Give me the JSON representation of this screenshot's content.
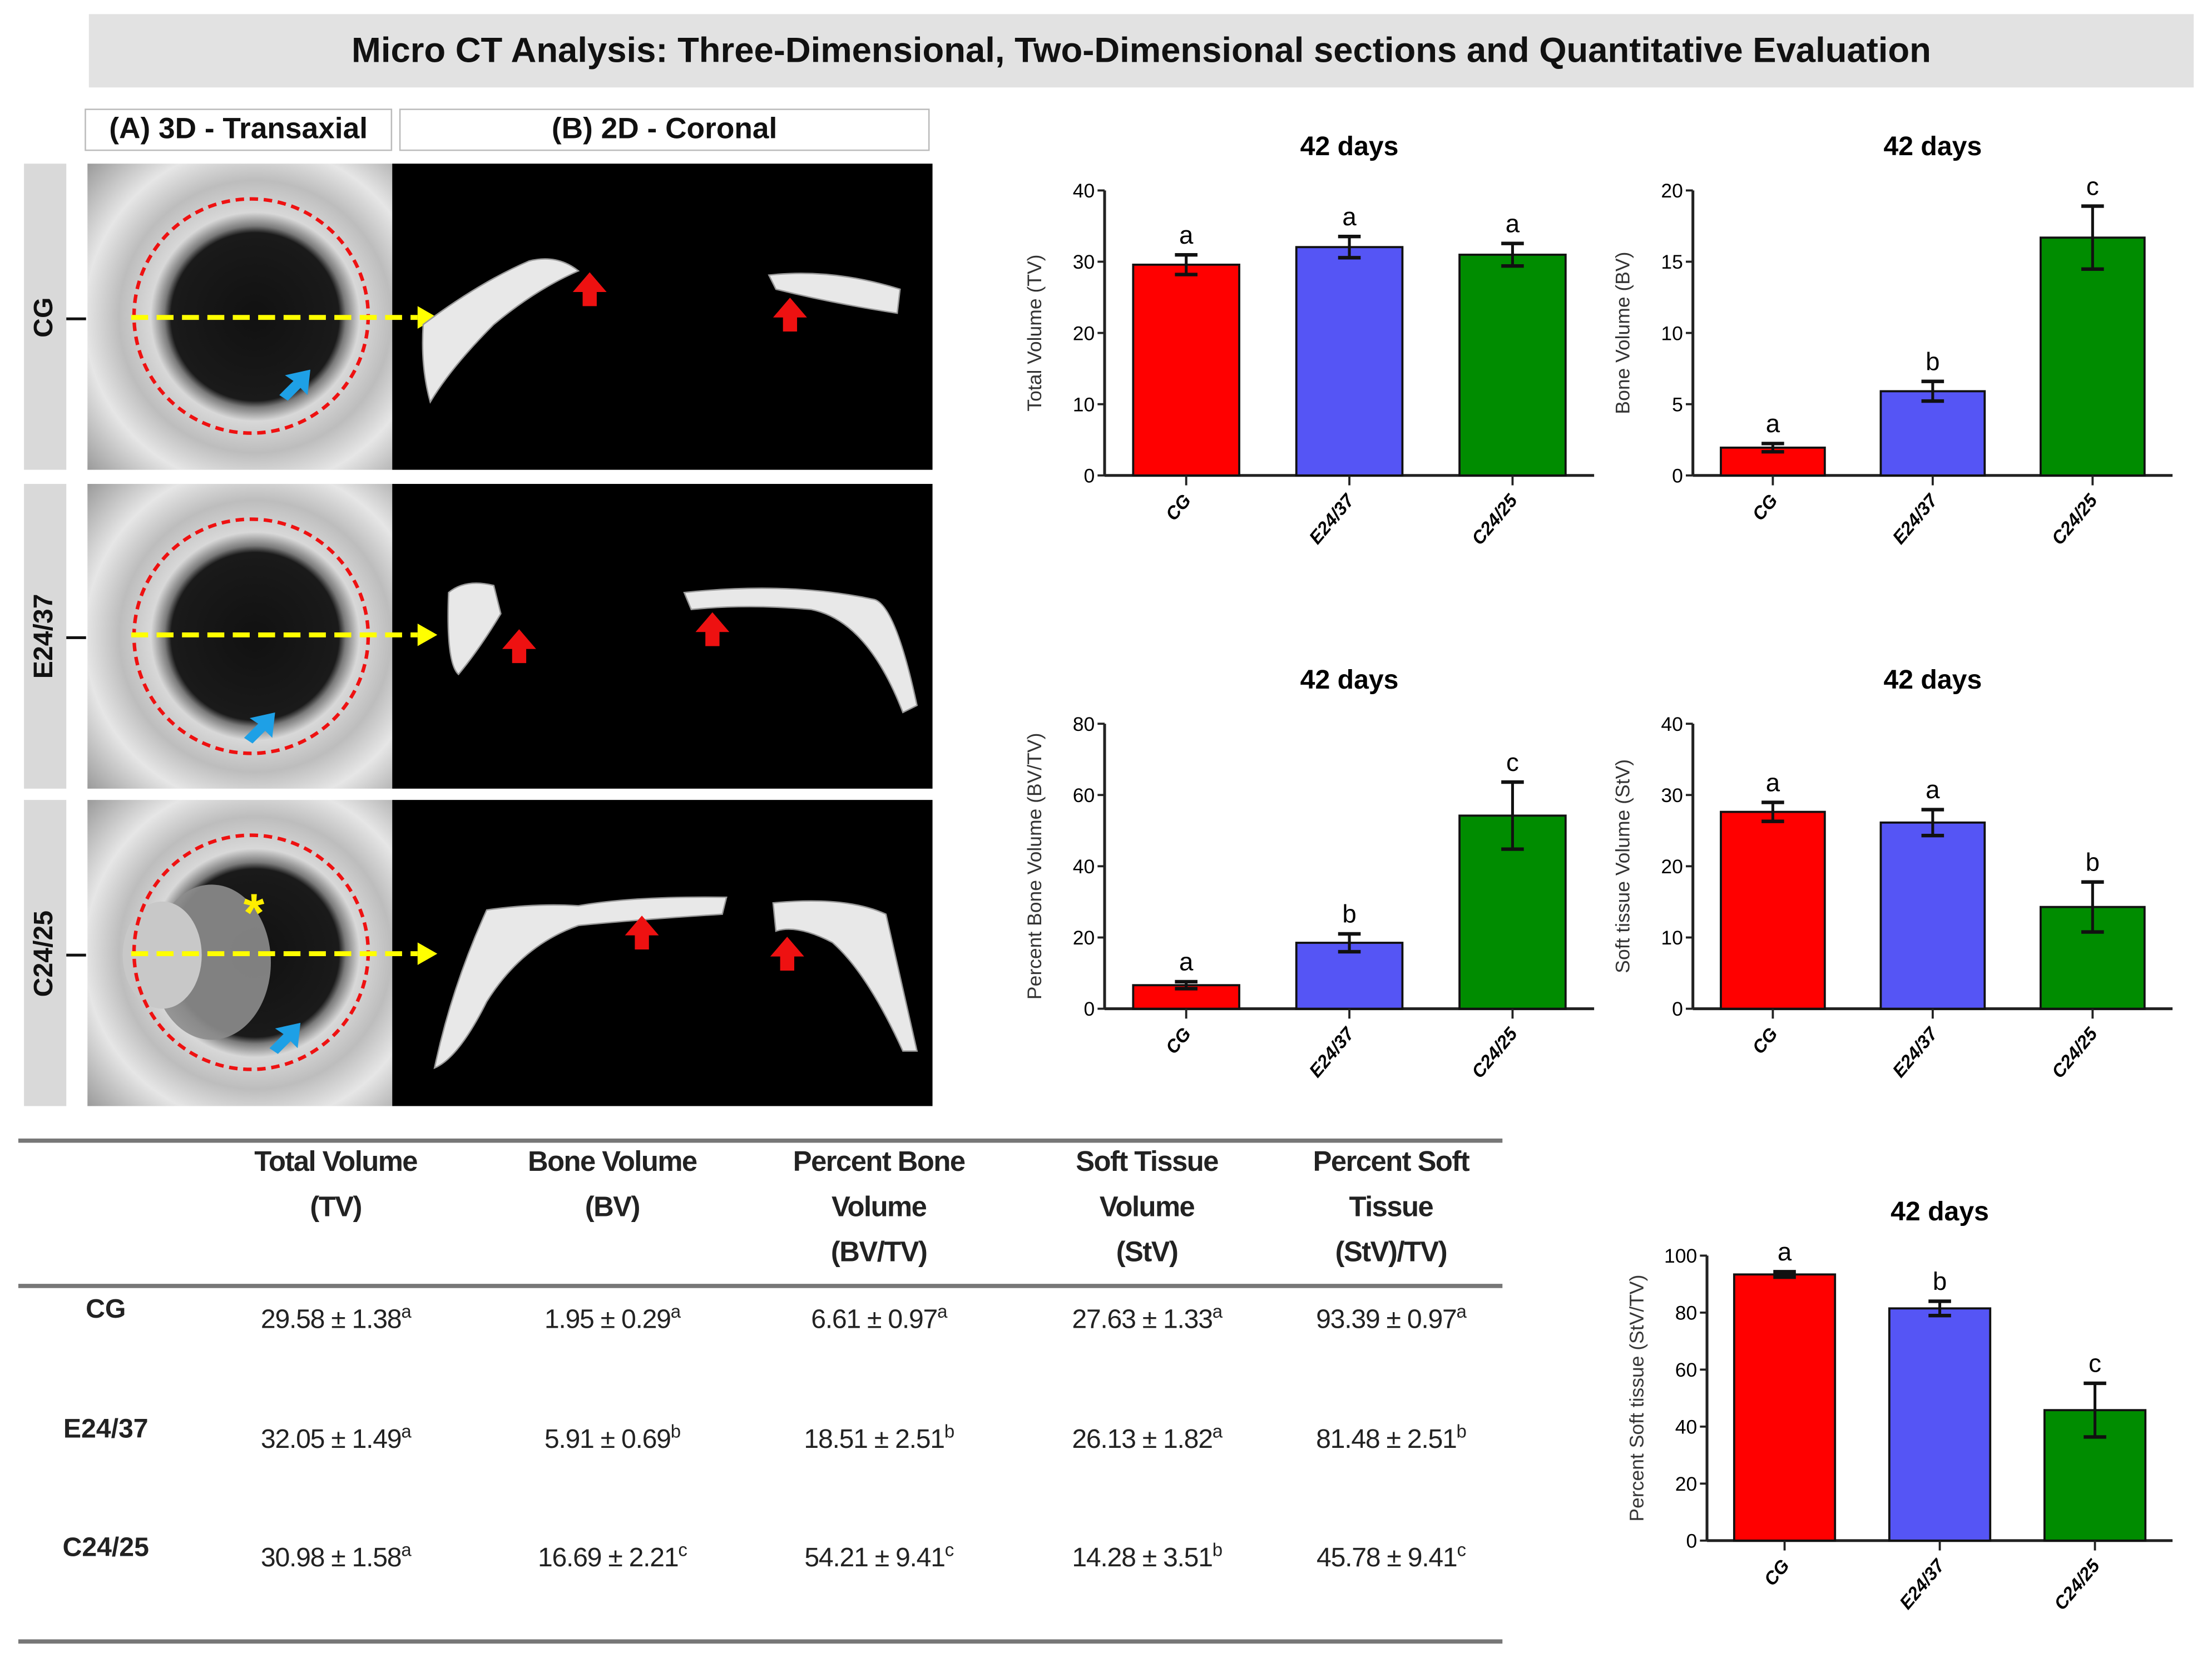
{
  "title": "Micro CT Analysis: Three-Dimensional, Two-Dimensional sections and Quantitative Evaluation",
  "panels": {
    "a": "(A) 3D - Transaxial",
    "b": "(B) 2D - Coronal"
  },
  "groups": [
    "CG",
    "E24/37",
    "C24/25"
  ],
  "colors": {
    "CG": "#ff0000",
    "E24/37": "#5555f5",
    "C24/25": "#008c00"
  },
  "chart_data": [
    {
      "type": "bar",
      "title": "42 days",
      "ylabel": "Total Volume (TV)",
      "categories": [
        "CG",
        "E24/37",
        "C24/25"
      ],
      "values": [
        29.58,
        32.05,
        30.98
      ],
      "errors": [
        1.38,
        1.49,
        1.58
      ],
      "letters": [
        "a",
        "a",
        "a"
      ],
      "ylim": [
        0,
        40
      ],
      "yticks": [
        0,
        10,
        20,
        30,
        40
      ]
    },
    {
      "type": "bar",
      "title": "42 days",
      "ylabel": "Bone Volume (BV)",
      "categories": [
        "CG",
        "E24/37",
        "C24/25"
      ],
      "values": [
        1.95,
        5.91,
        16.69
      ],
      "errors": [
        0.29,
        0.69,
        2.21
      ],
      "letters": [
        "a",
        "b",
        "c"
      ],
      "ylim": [
        0,
        20
      ],
      "yticks": [
        0,
        5,
        10,
        15,
        20
      ]
    },
    {
      "type": "bar",
      "title": "42 days",
      "ylabel": "Percent Bone Volume (BV/TV)",
      "categories": [
        "CG",
        "E24/37",
        "C24/25"
      ],
      "values": [
        6.61,
        18.51,
        54.21
      ],
      "errors": [
        0.97,
        2.51,
        9.41
      ],
      "letters": [
        "a",
        "b",
        "c"
      ],
      "ylim": [
        0,
        80
      ],
      "yticks": [
        0,
        20,
        40,
        60,
        80
      ]
    },
    {
      "type": "bar",
      "title": "42 days",
      "ylabel": "Soft tissue Volume (StV)",
      "categories": [
        "CG",
        "E24/37",
        "C24/25"
      ],
      "values": [
        27.63,
        26.13,
        14.28
      ],
      "errors": [
        1.33,
        1.82,
        3.51
      ],
      "letters": [
        "a",
        "a",
        "b"
      ],
      "ylim": [
        0,
        40
      ],
      "yticks": [
        0,
        10,
        20,
        30,
        40
      ]
    },
    {
      "type": "bar",
      "title": "42 days",
      "ylabel": "Percent Soft tissue (StV/TV)",
      "categories": [
        "CG",
        "E24/37",
        "C24/25"
      ],
      "values": [
        93.39,
        81.48,
        45.78
      ],
      "errors": [
        0.97,
        2.51,
        9.41
      ],
      "letters": [
        "a",
        "b",
        "c"
      ],
      "ylim": [
        0,
        100
      ],
      "yticks": [
        0,
        20,
        40,
        60,
        80,
        100
      ]
    }
  ],
  "table": {
    "headers": [
      [
        "Total Volume",
        "(TV)"
      ],
      [
        "Bone Volume",
        "(BV)"
      ],
      [
        "Percent Bone",
        "Volume",
        "(BV/TV)"
      ],
      [
        "Soft Tissue",
        "Volume",
        "(StV)"
      ],
      [
        "Percent Soft",
        "Tissue",
        "(StV)/TV)"
      ]
    ],
    "rows": [
      {
        "group": "CG",
        "cells": [
          {
            "v": "29.58 ± 1.38",
            "s": "a"
          },
          {
            "v": "1.95 ± 0.29",
            "s": "a"
          },
          {
            "v": "6.61 ± 0.97",
            "s": "a"
          },
          {
            "v": "27.63 ± 1.33",
            "s": "a"
          },
          {
            "v": "93.39 ± 0.97",
            "s": "a"
          }
        ]
      },
      {
        "group": "E24/37",
        "cells": [
          {
            "v": "32.05 ± 1.49",
            "s": "a"
          },
          {
            "v": "5.91 ± 0.69",
            "s": "b"
          },
          {
            "v": "18.51 ± 2.51",
            "s": "b"
          },
          {
            "v": "26.13 ± 1.82",
            "s": "a"
          },
          {
            "v": "81.48 ± 2.51",
            "s": "b"
          }
        ]
      },
      {
        "group": "C24/25",
        "cells": [
          {
            "v": "30.98 ± 1.58",
            "s": "a"
          },
          {
            "v": "16.69 ± 2.21",
            "s": "c"
          },
          {
            "v": "54.21 ± 9.41",
            "s": "c"
          },
          {
            "v": "14.28 ± 3.51",
            "s": "b"
          },
          {
            "v": "45.78 ± 9.41",
            "s": "c"
          }
        ]
      }
    ]
  }
}
